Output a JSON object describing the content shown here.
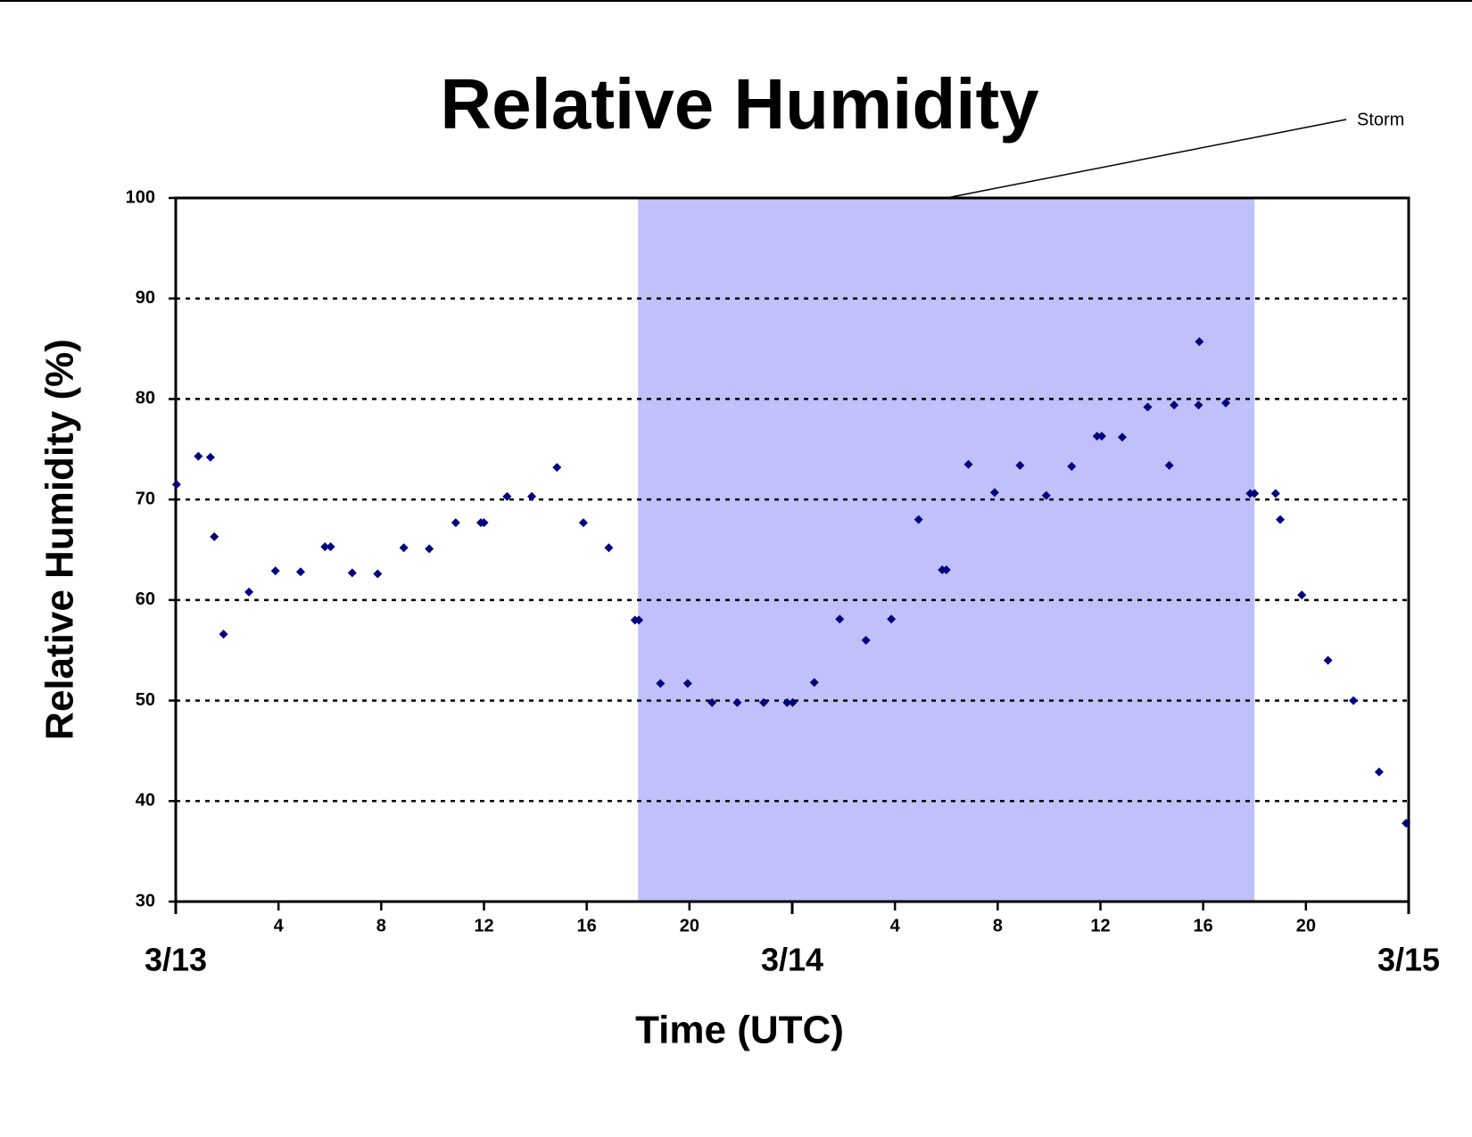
{
  "chart_data": {
    "type": "scatter",
    "title": "Relative Humidity",
    "x_label": "Time (UTC)",
    "y_label": "Relative Humidity (%)",
    "annotation": {
      "label": "Storm",
      "span": [
        18,
        42
      ],
      "color": "#c0c0fa"
    },
    "x": [
      0.03,
      0.88,
      1.35,
      1.5,
      1.86,
      2.85,
      3.88,
      4.86,
      5.81,
      6.03,
      6.87,
      7.86,
      8.88,
      9.87,
      10.9,
      11.88,
      12.0,
      12.9,
      13.86,
      14.84,
      15.87,
      16.86,
      17.88,
      18.03,
      18.87,
      19.93,
      20.88,
      21.86,
      22.89,
      23.8,
      24.02,
      24.86,
      25.85,
      26.87,
      27.86,
      28.92,
      29.84,
      30.0,
      30.86,
      31.88,
      32.87,
      33.89,
      34.88,
      35.87,
      36.05,
      36.85,
      37.84,
      38.68,
      38.87,
      39.82,
      39.85,
      40.88,
      41.83,
      42.0,
      42.82,
      43.0,
      43.84,
      44.86,
      45.85,
      46.85,
      47.9
    ],
    "series": [
      {
        "color": "#000080",
        "values": [
          71.5,
          74.3,
          74.2,
          66.3,
          56.6,
          60.8,
          62.9,
          62.8,
          65.3,
          65.3,
          62.7,
          62.6,
          65.2,
          65.1,
          67.7,
          67.7,
          67.7,
          70.3,
          70.3,
          73.2,
          67.7,
          65.2,
          58.0,
          58.0,
          51.7,
          51.7,
          49.8,
          49.8,
          49.8,
          49.8,
          49.8,
          51.8,
          58.1,
          56.0,
          58.1,
          68.0,
          63.0,
          63.0,
          73.5,
          70.7,
          73.4,
          70.4,
          73.3,
          76.3,
          76.3,
          76.2,
          79.2,
          73.4,
          79.4,
          79.4,
          85.7,
          79.6,
          70.6,
          70.6,
          70.6,
          68.0,
          60.5,
          54.0,
          50.0,
          42.9,
          37.8
        ]
      }
    ],
    "xlim": [
      0,
      48
    ],
    "xticks": [
      4,
      8,
      12,
      16,
      20,
      {
        "value": 28,
        "label": "4"
      },
      {
        "value": 32,
        "label": "8"
      },
      {
        "value": 36,
        "label": "12"
      },
      {
        "value": 40,
        "label": "16"
      },
      {
        "value": 44,
        "label": "20"
      }
    ],
    "date_ticks": [
      {
        "value": 0,
        "label": "3/13"
      },
      {
        "value": 24,
        "label": "3/14"
      },
      {
        "value": 48,
        "label": "3/15"
      }
    ],
    "ylim": [
      30,
      100
    ],
    "yticks": [
      30,
      40,
      50,
      60,
      70,
      80,
      90,
      100
    ],
    "grid": true
  }
}
